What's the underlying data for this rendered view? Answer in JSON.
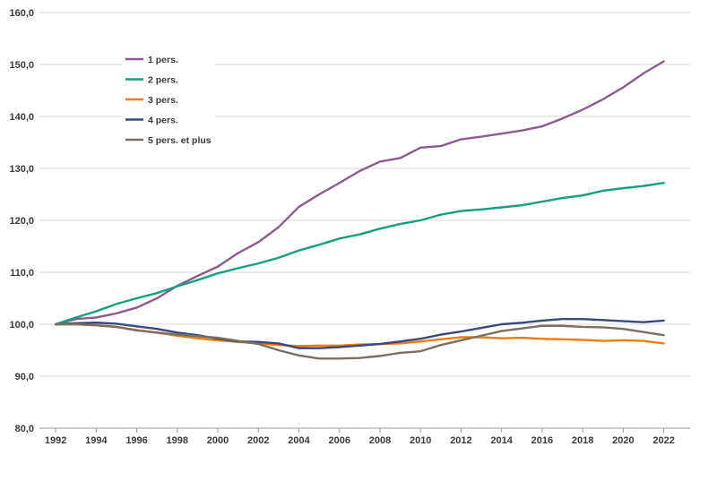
{
  "chart_data": {
    "type": "line",
    "title": "",
    "xlabel": "",
    "ylabel": "",
    "ylim": [
      80,
      160
    ],
    "yticks": [
      "80,0",
      "90,0",
      "100,0",
      "110,0",
      "120,0",
      "130,0",
      "140,0",
      "150,0",
      "160,0"
    ],
    "xticks": [
      "1992",
      "1994",
      "1996",
      "1998",
      "2000",
      "2002",
      "2004",
      "2006",
      "2008",
      "2010",
      "2012",
      "2014",
      "2016",
      "2018",
      "2020",
      "2022"
    ],
    "grid": true,
    "legend_position": "top-left",
    "x": [
      1992,
      1993,
      1994,
      1995,
      1996,
      1997,
      1998,
      1999,
      2000,
      2001,
      2002,
      2003,
      2004,
      2005,
      2006,
      2007,
      2008,
      2009,
      2010,
      2011,
      2012,
      2013,
      2014,
      2015,
      2016,
      2017,
      2018,
      2019,
      2020,
      2021,
      2022
    ],
    "series": [
      {
        "name": "1 pers.",
        "color": "#8e5a92",
        "values": [
          100.0,
          101.0,
          101.3,
          102.1,
          103.2,
          105.0,
          107.4,
          109.3,
          111.1,
          113.7,
          115.8,
          118.7,
          122.6,
          125.0,
          127.2,
          129.5,
          131.3,
          132.0,
          134.0,
          134.3,
          135.6,
          136.1,
          136.7,
          137.3,
          138.1,
          139.6,
          141.3,
          143.3,
          145.6,
          148.3,
          150.6
        ]
      },
      {
        "name": "2 pers.",
        "color": "#12a081",
        "values": [
          100.0,
          101.3,
          102.5,
          103.9,
          105.0,
          106.0,
          107.3,
          108.5,
          109.8,
          110.8,
          111.7,
          112.8,
          114.2,
          115.3,
          116.5,
          117.3,
          118.4,
          119.3,
          120.0,
          121.1,
          121.8,
          122.1,
          122.5,
          122.9,
          123.6,
          124.3,
          124.8,
          125.7,
          126.2,
          126.6,
          127.2
        ]
      },
      {
        "name": "3 pers.",
        "color": "#f07d0a",
        "values": [
          100.0,
          100.0,
          99.8,
          99.5,
          98.9,
          98.4,
          97.8,
          97.3,
          96.9,
          96.6,
          96.3,
          96.0,
          95.8,
          95.9,
          95.9,
          96.1,
          96.2,
          96.3,
          96.7,
          97.1,
          97.5,
          97.5,
          97.3,
          97.4,
          97.2,
          97.1,
          97.0,
          96.8,
          96.9,
          96.8,
          96.3
        ]
      },
      {
        "name": "4 pers.",
        "color": "#3a4781",
        "values": [
          100.0,
          100.2,
          100.3,
          100.1,
          99.6,
          99.1,
          98.4,
          97.9,
          97.2,
          96.7,
          96.6,
          96.3,
          95.4,
          95.4,
          95.6,
          95.9,
          96.2,
          96.7,
          97.2,
          98.0,
          98.6,
          99.3,
          100.0,
          100.3,
          100.7,
          101.0,
          101.0,
          100.8,
          100.6,
          100.4,
          100.7
        ]
      },
      {
        "name": "5 pers. et plus",
        "color": "#7a6f61",
        "values": [
          100.0,
          100.0,
          99.8,
          99.5,
          98.8,
          98.4,
          98.0,
          97.7,
          97.4,
          96.8,
          96.2,
          95.0,
          94.0,
          93.4,
          93.4,
          93.5,
          93.9,
          94.5,
          94.8,
          96.0,
          96.9,
          97.8,
          98.7,
          99.2,
          99.7,
          99.7,
          99.5,
          99.4,
          99.1,
          98.5,
          97.9
        ]
      }
    ]
  }
}
